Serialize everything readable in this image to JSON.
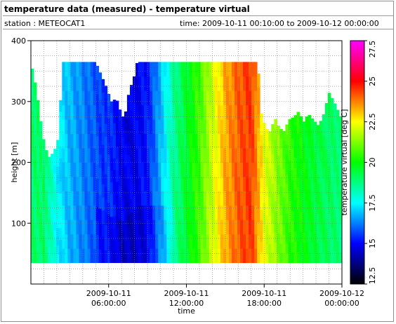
{
  "header": {
    "title": "temperature data (measured) - temperature virtual",
    "station": "station : METEOCAT1",
    "time_range": "time: 2009-10-11 00:10:00 to 2009-10-12 00:00:00"
  },
  "chart_data": {
    "type": "heatmap",
    "title": "temperature data (measured) - temperature virtual",
    "xlabel": "time",
    "ylabel": "height [m]",
    "colorbar_label": "temperature virtual [deg C]",
    "xlim_hours": [
      0,
      24
    ],
    "ylim": [
      0,
      400
    ],
    "x_ticks": [
      {
        "hour": 6,
        "line1": "2009-10-11",
        "line2": "06:00:00"
      },
      {
        "hour": 12,
        "line1": "2009-10-11",
        "line2": "12:00:00"
      },
      {
        "hour": 18,
        "line1": "2009-10-11",
        "line2": "18:00:00"
      },
      {
        "hour": 24,
        "line1": "2009-10-12",
        "line2": "00:00:00"
      }
    ],
    "y_ticks": [
      100,
      200,
      300,
      400
    ],
    "colorbar_ticks": [
      "12.5",
      "15",
      "17.5",
      "20",
      "22.5",
      "25",
      "27.5"
    ],
    "color_range": [
      12.5,
      27.5
    ],
    "colormap": [
      "#000000",
      "#0000ff",
      "#00ffff",
      "#00ff00",
      "#ffff00",
      "#ff0000",
      "#ff00ff"
    ],
    "data_bottom_height": 35,
    "temperature_profile": {
      "hours": [
        0,
        1,
        2,
        3,
        4,
        5,
        5.5,
        6,
        7,
        8,
        9,
        10,
        11,
        12,
        13,
        14,
        15,
        16,
        17,
        18,
        19,
        20,
        21,
        22,
        23,
        24
      ],
      "temps": [
        19,
        19,
        17.5,
        16.8,
        16.3,
        15.8,
        15.5,
        15.5,
        14.8,
        14.8,
        15.2,
        16.8,
        18.5,
        19.6,
        20.6,
        22,
        23.3,
        24.1,
        24.5,
        22.3,
        21.3,
        20.4,
        19.9,
        19.4,
        19.1,
        18.8
      ]
    },
    "top_height_profile": {
      "hours": [
        0,
        0.3,
        0.6,
        0.9,
        1.2,
        1.5,
        1.8,
        2,
        2.5,
        3,
        5,
        5.8,
        6.2,
        6.6,
        6.9,
        7.2,
        7.6,
        7.9,
        8.2,
        9,
        10,
        11,
        12,
        13,
        14,
        15,
        16,
        17,
        17.5,
        17.8,
        18.2,
        18.5,
        18.8,
        19.1,
        19.5,
        19.9,
        20.3,
        20.7,
        21,
        21.4,
        21.8,
        22.2,
        22.6,
        23,
        23.5,
        24
      ],
      "heights": [
        365,
        335,
        295,
        245,
        220,
        205,
        225,
        215,
        365,
        365,
        365,
        325,
        300,
        305,
        285,
        270,
        320,
        335,
        365,
        365,
        365,
        365,
        365,
        365,
        365,
        365,
        365,
        365,
        365,
        275,
        255,
        250,
        275,
        260,
        250,
        270,
        275,
        285,
        265,
        280,
        270,
        260,
        280,
        315,
        295,
        270
      ]
    }
  }
}
